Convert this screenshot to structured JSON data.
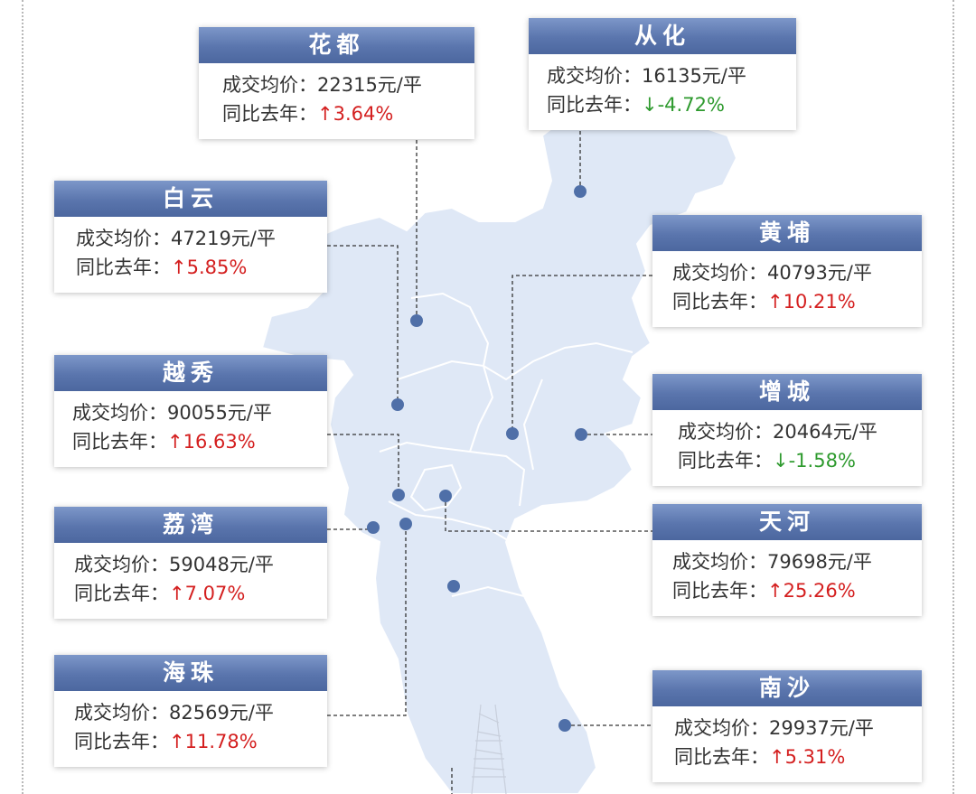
{
  "price_label": "成交均价：",
  "yoy_label": "同比去年：",
  "colors": {
    "header": "#5f7ab2",
    "map": "#dfe8f6",
    "up": "#d41f1f",
    "down": "#2e9a2e",
    "leader": "#333333"
  },
  "districts": [
    {
      "key": "huadu",
      "name": "花都",
      "price": "22315元/平",
      "arrow": "↑",
      "change": "3.64%",
      "trend": "up"
    },
    {
      "key": "conghua",
      "name": "从化",
      "price": "16135元/平",
      "arrow": "↓",
      "change": "-4.72%",
      "trend": "down"
    },
    {
      "key": "baiyun",
      "name": "白云",
      "price": "47219元/平",
      "arrow": "↑",
      "change": "5.85%",
      "trend": "up"
    },
    {
      "key": "huangpu",
      "name": "黄埔",
      "price": "40793元/平",
      "arrow": "↑",
      "change": "10.21%",
      "trend": "up"
    },
    {
      "key": "yuexiu",
      "name": "越秀",
      "price": "90055元/平",
      "arrow": "↑",
      "change": "16.63%",
      "trend": "up"
    },
    {
      "key": "zengcheng",
      "name": "增城",
      "price": "20464元/平",
      "arrow": "↓",
      "change": "-1.58%",
      "trend": "down"
    },
    {
      "key": "liwan",
      "name": "荔湾",
      "price": "59048元/平",
      "arrow": "↑",
      "change": "7.07%",
      "trend": "up"
    },
    {
      "key": "tianhe",
      "name": "天河",
      "price": "79698元/平",
      "arrow": "↑",
      "change": "25.26%",
      "trend": "up"
    },
    {
      "key": "haizhu",
      "name": "海珠",
      "price": "82569元/平",
      "arrow": "↑",
      "change": "11.78%",
      "trend": "up"
    },
    {
      "key": "nansha",
      "name": "南沙",
      "price": "29937元/平",
      "arrow": "↑",
      "change": "5.31%",
      "trend": "up"
    }
  ]
}
